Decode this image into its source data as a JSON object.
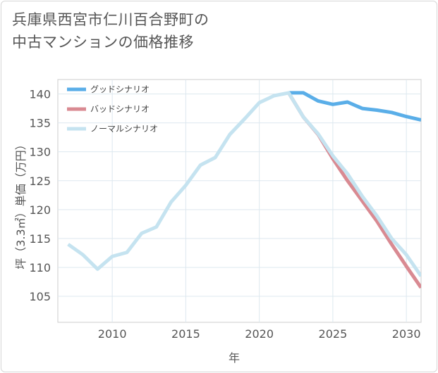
{
  "title": {
    "line1": "兵庫県西宮市仁川百合野町の",
    "line2": "中古マンションの価格推移"
  },
  "chart_data": {
    "type": "line",
    "xlabel": "年",
    "ylabel": "坪（3.3㎡）単価（万円）",
    "xlim": [
      2006.3,
      2031
    ],
    "ylim": [
      100.5,
      142.5
    ],
    "xticks": [
      2010,
      2015,
      2020,
      2025,
      2030
    ],
    "yticks": [
      105,
      110,
      115,
      120,
      125,
      130,
      135,
      140
    ],
    "grid": true,
    "legend_position": "top-left",
    "series": [
      {
        "name": "グッドシナリオ",
        "color": "#5aaee8",
        "x": [
          2022,
          2023,
          2024,
          2025,
          2026,
          2027,
          2028,
          2029,
          2030,
          2031
        ],
        "y": [
          140.2,
          140.2,
          138.8,
          138.2,
          138.6,
          137.5,
          137.2,
          136.8,
          136.1,
          135.5
        ]
      },
      {
        "name": "バッドシナリオ",
        "color": "#d98a92",
        "x": [
          2022,
          2023,
          2024,
          2025,
          2026,
          2027,
          2028,
          2029,
          2030,
          2031
        ],
        "y": [
          140.2,
          136.0,
          133.0,
          128.8,
          125.0,
          121.5,
          118.0,
          114.0,
          110.2,
          106.5
        ]
      },
      {
        "name": "ノーマルシナリオ",
        "color": "#c5e3f0",
        "x": [
          2007,
          2008,
          2009,
          2010,
          2011,
          2012,
          2013,
          2014,
          2015,
          2016,
          2017,
          2018,
          2019,
          2020,
          2021,
          2022,
          2023,
          2024,
          2025,
          2026,
          2027,
          2028,
          2029,
          2030,
          2031
        ],
        "y": [
          114.0,
          112.2,
          109.7,
          111.9,
          112.6,
          115.9,
          117.0,
          121.3,
          124.2,
          127.7,
          129.0,
          133.0,
          135.7,
          138.5,
          139.7,
          140.2,
          136.0,
          133.1,
          129.3,
          126.2,
          122.3,
          118.9,
          115.0,
          112.2,
          108.5
        ]
      }
    ]
  }
}
